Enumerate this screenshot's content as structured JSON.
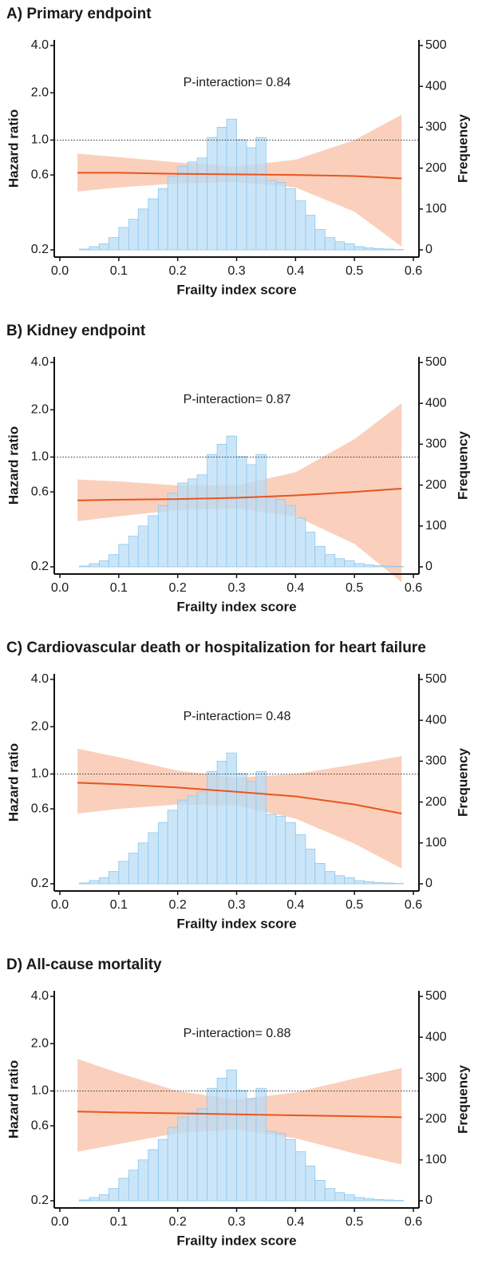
{
  "chart_data": [
    {
      "type": "hazard-histogram",
      "title": "A) Primary endpoint",
      "annotation": "P-interaction= 0.84",
      "x_label": "Frailty index score",
      "y_label": "Hazard ratio",
      "y2_label": "Frequency",
      "xlim": [
        0,
        0.6
      ],
      "xticks": [
        {
          "value": 0,
          "label": "0.0"
        },
        0.1,
        0.2,
        0.3,
        0.4,
        0.5,
        0.6
      ],
      "ylim": [
        0.2,
        4
      ],
      "log_y": true,
      "yticks": [
        0.2,
        0.6,
        {
          "value": 1,
          "label": "1.0"
        },
        {
          "value": 2,
          "label": "2.0"
        },
        {
          "value": 4,
          "label": "4.0"
        }
      ],
      "y2lim": [
        0,
        500
      ],
      "y2ticks": [
        0,
        100,
        200,
        300,
        400,
        500
      ],
      "reference_line": 1,
      "histogram": {
        "color": "#b9dcf5",
        "bins": [
          0.033,
          0.05,
          0.067,
          0.083,
          0.1,
          0.117,
          0.133,
          0.15,
          0.167,
          0.183,
          0.2,
          0.217,
          0.233,
          0.25,
          0.267,
          0.283,
          0.3,
          0.317,
          0.333,
          0.35,
          0.367,
          0.383,
          0.4,
          0.417,
          0.433,
          0.45,
          0.467,
          0.483,
          0.5,
          0.517,
          0.533,
          0.55,
          0.567,
          0.583
        ],
        "counts": [
          2,
          8,
          15,
          30,
          55,
          75,
          100,
          125,
          150,
          180,
          205,
          215,
          225,
          275,
          300,
          320,
          270,
          250,
          275,
          170,
          165,
          150,
          120,
          85,
          50,
          30,
          20,
          15,
          8,
          5,
          3,
          2,
          1
        ]
      },
      "line": {
        "color": "#e8551f",
        "band_color": "#f9c4ab",
        "x": [
          0.03,
          0.1,
          0.2,
          0.3,
          0.4,
          0.5,
          0.58
        ],
        "values": [
          0.62,
          0.62,
          0.61,
          0.605,
          0.6,
          0.59,
          0.57
        ],
        "lower": [
          0.47,
          0.5,
          0.53,
          0.54,
          0.5,
          0.35,
          0.21
        ],
        "upper": [
          0.82,
          0.78,
          0.72,
          0.68,
          0.75,
          1.0,
          1.45
        ]
      }
    },
    {
      "type": "hazard-histogram",
      "title": "B) Kidney endpoint",
      "annotation": "P-interaction= 0.87",
      "x_label": "Frailty index score",
      "y_label": "Hazard ratio",
      "y2_label": "Frequency",
      "xlim": [
        0,
        0.6
      ],
      "xticks": [
        {
          "value": 0,
          "label": "0.0"
        },
        0.1,
        0.2,
        0.3,
        0.4,
        0.5,
        0.6
      ],
      "ylim": [
        0.2,
        4
      ],
      "log_y": true,
      "yticks": [
        0.2,
        0.6,
        {
          "value": 1,
          "label": "1.0"
        },
        {
          "value": 2,
          "label": "2.0"
        },
        {
          "value": 4,
          "label": "4.0"
        }
      ],
      "y2lim": [
        0,
        500
      ],
      "y2ticks": [
        0,
        100,
        200,
        300,
        400,
        500
      ],
      "reference_line": 1,
      "histogram": {
        "color": "#b9dcf5",
        "bins": [
          0.033,
          0.05,
          0.067,
          0.083,
          0.1,
          0.117,
          0.133,
          0.15,
          0.167,
          0.183,
          0.2,
          0.217,
          0.233,
          0.25,
          0.267,
          0.283,
          0.3,
          0.317,
          0.333,
          0.35,
          0.367,
          0.383,
          0.4,
          0.417,
          0.433,
          0.45,
          0.467,
          0.483,
          0.5,
          0.517,
          0.533,
          0.55,
          0.567,
          0.583
        ],
        "counts": [
          2,
          8,
          15,
          30,
          55,
          75,
          100,
          125,
          150,
          180,
          205,
          215,
          225,
          275,
          300,
          320,
          270,
          250,
          275,
          170,
          165,
          150,
          120,
          85,
          50,
          30,
          20,
          15,
          8,
          5,
          3,
          2,
          1
        ]
      },
      "line": {
        "color": "#e8551f",
        "band_color": "#f9c4ab",
        "x": [
          0.03,
          0.1,
          0.2,
          0.3,
          0.4,
          0.5,
          0.58
        ],
        "values": [
          0.53,
          0.535,
          0.54,
          0.55,
          0.57,
          0.6,
          0.63
        ],
        "lower": [
          0.39,
          0.42,
          0.46,
          0.47,
          0.42,
          0.28,
          0.16
        ],
        "upper": [
          0.72,
          0.7,
          0.66,
          0.66,
          0.8,
          1.3,
          2.2
        ]
      }
    },
    {
      "type": "hazard-histogram",
      "title": "C) Cardiovascular death or hospitalization for heart failure",
      "annotation": "P-interaction= 0.48",
      "x_label": "Frailty index score",
      "y_label": "Hazard ratio",
      "y2_label": "Frequency",
      "xlim": [
        0,
        0.6
      ],
      "xticks": [
        {
          "value": 0,
          "label": "0.0"
        },
        0.1,
        0.2,
        0.3,
        0.4,
        0.5,
        0.6
      ],
      "ylim": [
        0.2,
        4
      ],
      "log_y": true,
      "yticks": [
        0.2,
        0.6,
        {
          "value": 1,
          "label": "1.0"
        },
        {
          "value": 2,
          "label": "2.0"
        },
        {
          "value": 4,
          "label": "4.0"
        }
      ],
      "y2lim": [
        0,
        500
      ],
      "y2ticks": [
        0,
        100,
        200,
        300,
        400,
        500
      ],
      "reference_line": 1,
      "histogram": {
        "color": "#b9dcf5",
        "bins": [
          0.033,
          0.05,
          0.067,
          0.083,
          0.1,
          0.117,
          0.133,
          0.15,
          0.167,
          0.183,
          0.2,
          0.217,
          0.233,
          0.25,
          0.267,
          0.283,
          0.3,
          0.317,
          0.333,
          0.35,
          0.367,
          0.383,
          0.4,
          0.417,
          0.433,
          0.45,
          0.467,
          0.483,
          0.5,
          0.517,
          0.533,
          0.55,
          0.567,
          0.583
        ],
        "counts": [
          2,
          8,
          15,
          30,
          55,
          75,
          100,
          125,
          150,
          180,
          205,
          215,
          225,
          275,
          300,
          320,
          270,
          250,
          275,
          170,
          165,
          150,
          120,
          85,
          50,
          30,
          20,
          15,
          8,
          5,
          3,
          2,
          1
        ]
      },
      "line": {
        "color": "#e8551f",
        "band_color": "#f9c4ab",
        "x": [
          0.03,
          0.1,
          0.2,
          0.3,
          0.4,
          0.5,
          0.58
        ],
        "values": [
          0.88,
          0.86,
          0.82,
          0.77,
          0.72,
          0.64,
          0.56
        ],
        "lower": [
          0.56,
          0.6,
          0.64,
          0.63,
          0.52,
          0.36,
          0.25
        ],
        "upper": [
          1.45,
          1.28,
          1.05,
          0.95,
          1.0,
          1.15,
          1.3
        ]
      }
    },
    {
      "type": "hazard-histogram",
      "title": "D) All-cause mortality",
      "annotation": "P-interaction= 0.88",
      "x_label": "Frailty index score",
      "y_label": "Hazard ratio",
      "y2_label": "Frequency",
      "xlim": [
        0,
        0.6
      ],
      "xticks": [
        {
          "value": 0,
          "label": "0.0"
        },
        0.1,
        0.2,
        0.3,
        0.4,
        0.5,
        0.6
      ],
      "ylim": [
        0.2,
        4
      ],
      "log_y": true,
      "yticks": [
        0.2,
        0.6,
        {
          "value": 1,
          "label": "1.0"
        },
        {
          "value": 2,
          "label": "2.0"
        },
        {
          "value": 4,
          "label": "4.0"
        }
      ],
      "y2lim": [
        0,
        500
      ],
      "y2ticks": [
        0,
        100,
        200,
        300,
        400,
        500
      ],
      "reference_line": 1,
      "histogram": {
        "color": "#b9dcf5",
        "bins": [
          0.033,
          0.05,
          0.067,
          0.083,
          0.1,
          0.117,
          0.133,
          0.15,
          0.167,
          0.183,
          0.2,
          0.217,
          0.233,
          0.25,
          0.267,
          0.283,
          0.3,
          0.317,
          0.333,
          0.35,
          0.367,
          0.383,
          0.4,
          0.417,
          0.433,
          0.45,
          0.467,
          0.483,
          0.5,
          0.517,
          0.533,
          0.55,
          0.567,
          0.583
        ],
        "counts": [
          2,
          8,
          15,
          30,
          55,
          75,
          100,
          125,
          150,
          180,
          205,
          215,
          225,
          275,
          300,
          320,
          270,
          250,
          275,
          170,
          165,
          150,
          120,
          85,
          50,
          30,
          20,
          15,
          8,
          5,
          3,
          2,
          1
        ]
      },
      "line": {
        "color": "#e8551f",
        "band_color": "#f9c4ab",
        "x": [
          0.03,
          0.1,
          0.2,
          0.3,
          0.4,
          0.5,
          0.58
        ],
        "values": [
          0.74,
          0.73,
          0.72,
          0.71,
          0.7,
          0.69,
          0.68
        ],
        "lower": [
          0.41,
          0.46,
          0.54,
          0.57,
          0.5,
          0.4,
          0.34
        ],
        "upper": [
          1.6,
          1.3,
          1.0,
          0.88,
          0.98,
          1.2,
          1.4
        ]
      }
    }
  ]
}
